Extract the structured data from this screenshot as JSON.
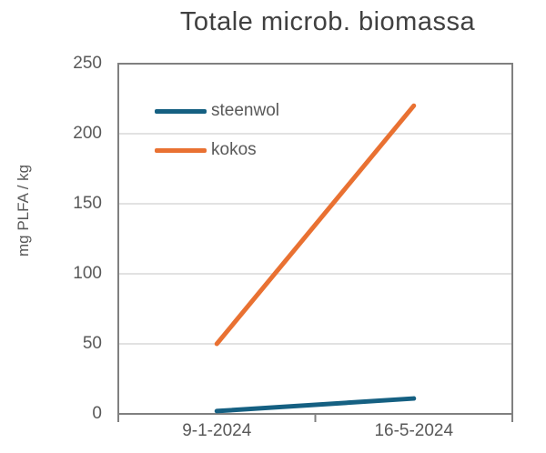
{
  "chart_data": {
    "type": "line",
    "title": "Totale microb. biomassa",
    "xlabel": "",
    "ylabel": "mg PLFA / kg",
    "categories": [
      "9-1-2024",
      "16-5-2024"
    ],
    "series": [
      {
        "name": "steenwol",
        "color": "#156082",
        "values": [
          2,
          11
        ]
      },
      {
        "name": "kokos",
        "color": "#E97132",
        "values": [
          50,
          220
        ]
      }
    ],
    "ylim": [
      0,
      250
    ],
    "yticks": [
      0,
      50,
      100,
      150,
      200,
      250
    ],
    "grid": true,
    "legend_position": "inside-top-left",
    "colors": {
      "grid": "#d9d9d9",
      "axis": "#808080",
      "tick_text": "#595959",
      "title_text": "#404040"
    }
  }
}
